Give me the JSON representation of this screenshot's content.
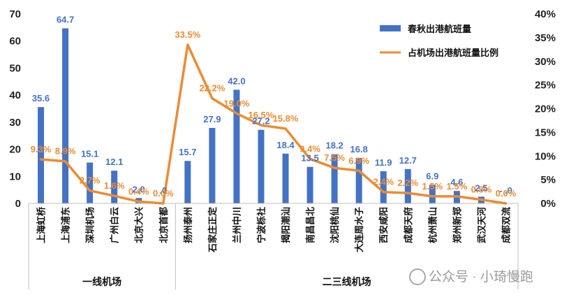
{
  "chart_data": {
    "type": "bar+line",
    "categories": [
      "上海虹桥",
      "上海浦东",
      "深圳机场",
      "广州白云",
      "北京大兴",
      "北京首都",
      "扬州泰州",
      "石家庄正定",
      "兰州中川",
      "宁波栎社",
      "揭阳潮汕",
      "南昌昌北",
      "沈阳桃仙",
      "大连周水子",
      "西安咸阳",
      "成都天府",
      "杭州萧山",
      "郑州新郑",
      "武汉天河",
      "成都双流"
    ],
    "groups": [
      {
        "name": "一线机场",
        "count": 6
      },
      {
        "name": "二三线机场",
        "count": 14
      }
    ],
    "series": [
      {
        "name": "春秋出港航班量",
        "axis": "left",
        "color": "#4472C4",
        "values": [
          35.6,
          64.7,
          15.1,
          12.1,
          2.0,
          0.0,
          15.7,
          27.9,
          42.0,
          27.2,
          18.4,
          13.5,
          18.2,
          16.8,
          11.9,
          12.7,
          6.9,
          4.6,
          2.5,
          0.0
        ],
        "labels": [
          "35.6",
          "64.7",
          "15.1",
          "12.1",
          "2.0",
          ".0",
          "15.7",
          "27.9",
          "42.0",
          "27.2",
          "18.4",
          "13.5",
          "18.2",
          "16.8",
          "11.9",
          "12.7",
          "6.9",
          "4.6",
          "2.5",
          "- .0"
        ]
      },
      {
        "name": "占机场出港航班量比例",
        "axis": "right",
        "color": "#ED8B32",
        "values": [
          9.3,
          8.9,
          2.7,
          1.6,
          0.4,
          0.0,
          33.5,
          22.2,
          19.0,
          16.5,
          15.8,
          9.4,
          7.5,
          6.9,
          2.4,
          2.2,
          1.5,
          1.5,
          0.8,
          0.0
        ],
        "labels": [
          "9.3%",
          "8.9%",
          "2.7%",
          "1.6%",
          "0.4%",
          "0.0%",
          "33.5%",
          "22.2%",
          "19.0%",
          "16.5%",
          "15.8%",
          "9.4%",
          "7.5%",
          "6.9%",
          "2.4%",
          "2.2%",
          "1.5%",
          "1.5%",
          "0.8%",
          "0.0%"
        ]
      }
    ],
    "y_left": {
      "min": 0,
      "max": 70,
      "ticks": [
        "0",
        "10",
        "20",
        "30",
        "40",
        "50",
        "60",
        "70"
      ]
    },
    "y_right": {
      "min": 0,
      "max": 40,
      "ticks": [
        "0%",
        "5%",
        "10%",
        "15%",
        "20%",
        "25%",
        "30%",
        "35%",
        "40%"
      ]
    },
    "legend_position": "top-right"
  },
  "watermark": "公众号 · 小琦慢跑"
}
